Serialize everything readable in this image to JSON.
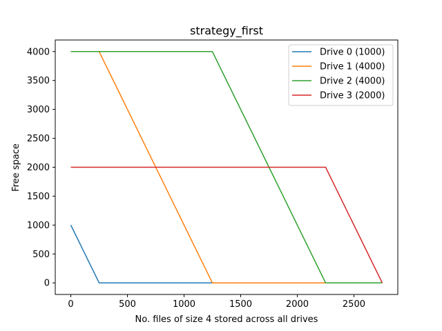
{
  "chart_data": {
    "type": "line",
    "title": "strategy_first",
    "xlabel": "No. files of size 4 stored across all drives",
    "ylabel": "Free space",
    "xlim": [
      -137.5,
      2887.5
    ],
    "ylim": [
      -200,
      4200
    ],
    "xticks": [
      0,
      500,
      1000,
      1500,
      2000,
      2500
    ],
    "yticks": [
      0,
      500,
      1000,
      1500,
      2000,
      2500,
      3000,
      3500,
      4000
    ],
    "grid": false,
    "legend_position": "top-right",
    "series": [
      {
        "name": "Drive 0 (1000)",
        "color": "#1f77b4",
        "x": [
          0,
          250,
          2750
        ],
        "y": [
          1000,
          0,
          0
        ]
      },
      {
        "name": "Drive 1 (4000)",
        "color": "#ff7f0e",
        "x": [
          0,
          250,
          1250,
          2750
        ],
        "y": [
          4000,
          4000,
          0,
          0
        ]
      },
      {
        "name": "Drive 2 (4000)",
        "color": "#2ca02c",
        "x": [
          0,
          1250,
          2250,
          2750
        ],
        "y": [
          4000,
          4000,
          0,
          0
        ]
      },
      {
        "name": "Drive 3 (2000)",
        "color": "#d62728",
        "x": [
          0,
          2250,
          2750
        ],
        "y": [
          2000,
          2000,
          0
        ]
      }
    ]
  }
}
